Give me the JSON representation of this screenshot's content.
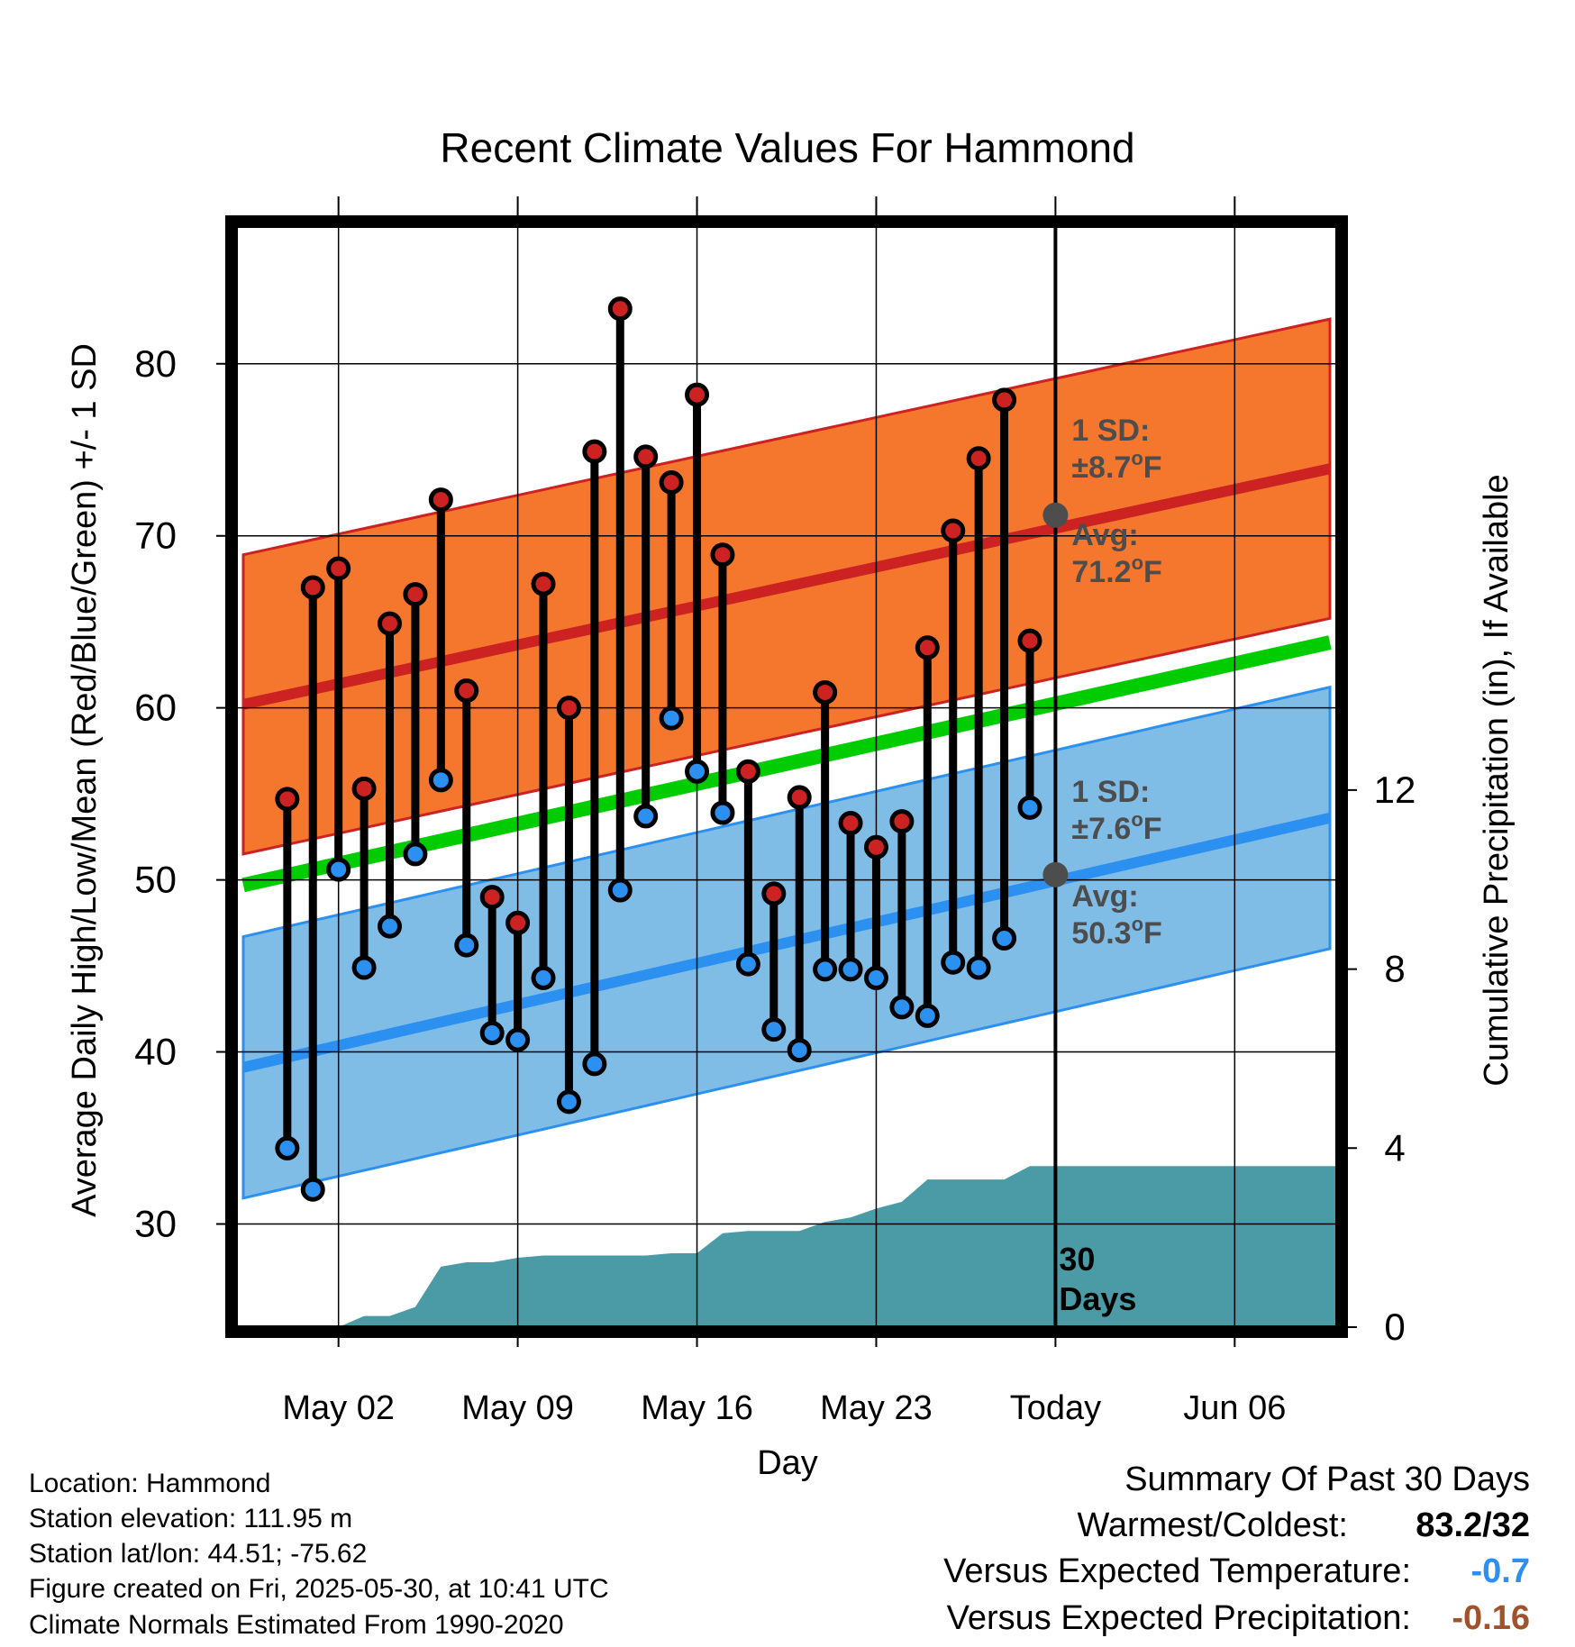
{
  "chart_data": {
    "type": "line",
    "title": "Recent Climate Values For Hammond",
    "xlabel": "Day",
    "ylabel": "Average Daily High/Low/Mean (Red/Blue/Green) +/- 1 SD",
    "y2label": "Cumulative Precipitation (in), If Available",
    "ylim": [
      24,
      88
    ],
    "y2lim": [
      0,
      24.6
    ],
    "xlim": [
      "2025-04-28",
      "2025-06-10"
    ],
    "x_ticks": [
      {
        "date": "2025-05-02",
        "label": "May 02"
      },
      {
        "date": "2025-05-09",
        "label": "May 09"
      },
      {
        "date": "2025-05-16",
        "label": "May 16"
      },
      {
        "date": "2025-05-23",
        "label": "May 23"
      },
      {
        "date": "2025-05-30",
        "label": "Today"
      },
      {
        "date": "2025-06-06",
        "label": "Jun 06"
      }
    ],
    "y_ticks": [
      30,
      40,
      50,
      60,
      70,
      80
    ],
    "y2_ticks": [
      0,
      4,
      8,
      12
    ],
    "grid": true,
    "today": "2025-05-30",
    "dates": [
      "2025-04-30",
      "2025-05-01",
      "2025-05-02",
      "2025-05-03",
      "2025-05-04",
      "2025-05-05",
      "2025-05-06",
      "2025-05-07",
      "2025-05-08",
      "2025-05-09",
      "2025-05-10",
      "2025-05-11",
      "2025-05-12",
      "2025-05-13",
      "2025-05-14",
      "2025-05-15",
      "2025-05-16",
      "2025-05-17",
      "2025-05-18",
      "2025-05-19",
      "2025-05-20",
      "2025-05-21",
      "2025-05-22",
      "2025-05-23",
      "2025-05-24",
      "2025-05-25",
      "2025-05-26",
      "2025-05-27",
      "2025-05-28",
      "2025-05-29"
    ],
    "series": [
      {
        "name": "High",
        "color": "#cc2222",
        "values": [
          54.7,
          67.0,
          68.1,
          55.3,
          64.9,
          66.6,
          72.1,
          61.0,
          49.0,
          47.5,
          67.2,
          60.0,
          74.9,
          83.2,
          74.6,
          73.1,
          78.2,
          68.9,
          56.3,
          49.2,
          54.8,
          60.9,
          53.3,
          51.9,
          53.4,
          63.5,
          70.3,
          74.5,
          77.9,
          63.9
        ]
      },
      {
        "name": "Low",
        "color": "#2b90f0",
        "values": [
          34.4,
          32.0,
          50.6,
          44.9,
          47.3,
          51.5,
          55.8,
          46.2,
          41.1,
          40.7,
          44.3,
          37.1,
          39.3,
          49.4,
          53.7,
          59.4,
          56.3,
          53.9,
          45.1,
          41.3,
          40.1,
          44.8,
          44.8,
          44.3,
          42.6,
          42.1,
          45.2,
          44.9,
          46.6,
          54.2
        ]
      }
    ],
    "normal_high": {
      "start": 60.2,
      "end": 73.9,
      "sd": 8.7,
      "today_avg": 71.2
    },
    "normal_low": {
      "start": 39.1,
      "end": 53.6,
      "sd": 7.6,
      "today_avg": 50.3
    },
    "normal_mean": {
      "start": 49.7,
      "end": 63.8
    },
    "precip_cumulative": {
      "dates": [
        "2025-05-02",
        "2025-05-03",
        "2025-05-04",
        "2025-05-05",
        "2025-05-06",
        "2025-05-07",
        "2025-05-08",
        "2025-05-09",
        "2025-05-10",
        "2025-05-11",
        "2025-05-12",
        "2025-05-13",
        "2025-05-14",
        "2025-05-15",
        "2025-05-16",
        "2025-05-17",
        "2025-05-18",
        "2025-05-19",
        "2025-05-20",
        "2025-05-21",
        "2025-05-22",
        "2025-05-23",
        "2025-05-24",
        "2025-05-25",
        "2025-05-26",
        "2025-05-27",
        "2025-05-28",
        "2025-05-29",
        "2025-06-10"
      ],
      "values": [
        0.0,
        0.25,
        0.25,
        0.45,
        1.35,
        1.45,
        1.45,
        1.55,
        1.6,
        1.6,
        1.6,
        1.6,
        1.6,
        1.65,
        1.65,
        2.1,
        2.15,
        2.15,
        2.15,
        2.35,
        2.45,
        2.65,
        2.8,
        3.3,
        3.3,
        3.3,
        3.3,
        3.6,
        3.6
      ],
      "color": "#4a9ba5"
    },
    "labels": {
      "high_sd_line1": "1 SD:",
      "high_sd_line2": "±8.7",
      "high_avg_line1": "Avg:",
      "high_avg_line2": "71.2",
      "low_sd_line1": "1 SD:",
      "low_sd_line2": "±7.6",
      "low_avg_line1": "Avg:",
      "low_avg_line2": "50.3",
      "degree": "o",
      "unit": "F",
      "days_line1": "30",
      "days_line2": "Days"
    },
    "colors": {
      "high_band": "#f5772e",
      "high_line": "#cc2222",
      "low_band": "#80bde6",
      "low_line": "#2b90f0",
      "mean_line": "#00cc00",
      "precip": "#4a9ba5",
      "annotation": "#4d4d4d",
      "dev_temp": "#2b90f0",
      "dev_precip": "#a0522d"
    }
  },
  "info": {
    "location": "Location: Hammond",
    "elevation": "Station elevation: 111.95 m",
    "latlon": "Station lat/lon: 44.51; -75.62",
    "created": "Figure created on Fri, 2025-05-30, at 10:41 UTC",
    "normals": "Climate Normals Estimated From 1990-2020"
  },
  "summary": {
    "title": "Summary Of Past 30 Days",
    "warm_cold_label": "Warmest/Coldest:",
    "warm_cold_value": "83.2/32",
    "temp_label": "Versus Expected Temperature:",
    "temp_value": "-0.7",
    "precip_label": "Versus Expected Precipitation:",
    "precip_value": "-0.16"
  }
}
